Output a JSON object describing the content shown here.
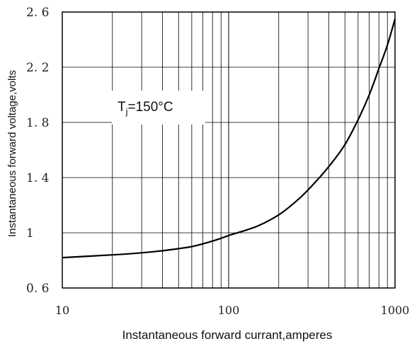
{
  "chart_data": {
    "type": "line",
    "title": "",
    "xlabel": "Instantaneous forward currant,amperes",
    "ylabel": "Instantaneous forward voltage,volts",
    "x_scale": "log",
    "xlim": [
      10,
      1000
    ],
    "ylim": [
      0.6,
      2.6
    ],
    "x_ticks": [
      {
        "value": 10,
        "label": "10"
      },
      {
        "value": 100,
        "label": "100"
      },
      {
        "value": 1000,
        "label": "1000"
      }
    ],
    "y_ticks": [
      {
        "value": 0.6,
        "label": "0. 6"
      },
      {
        "value": 1.0,
        "label": "1"
      },
      {
        "value": 1.4,
        "label": "1. 4"
      },
      {
        "value": 1.8,
        "label": "1. 8"
      },
      {
        "value": 2.2,
        "label": "2. 2"
      },
      {
        "value": 2.6,
        "label": "2. 6"
      }
    ],
    "grid": true,
    "annotation": {
      "main": "T",
      "sub": "j",
      "rest": "=150°C"
    },
    "series": [
      {
        "x": [
          10,
          20,
          30,
          40,
          50,
          60,
          70,
          80,
          90,
          100,
          120,
          150,
          200,
          250,
          300,
          400,
          500,
          600,
          700,
          800,
          900,
          1000
        ],
        "y": [
          0.82,
          0.84,
          0.855,
          0.87,
          0.885,
          0.9,
          0.92,
          0.94,
          0.96,
          0.98,
          1.01,
          1.05,
          1.13,
          1.22,
          1.31,
          1.48,
          1.64,
          1.82,
          2.0,
          2.19,
          2.36,
          2.55
        ]
      }
    ]
  }
}
